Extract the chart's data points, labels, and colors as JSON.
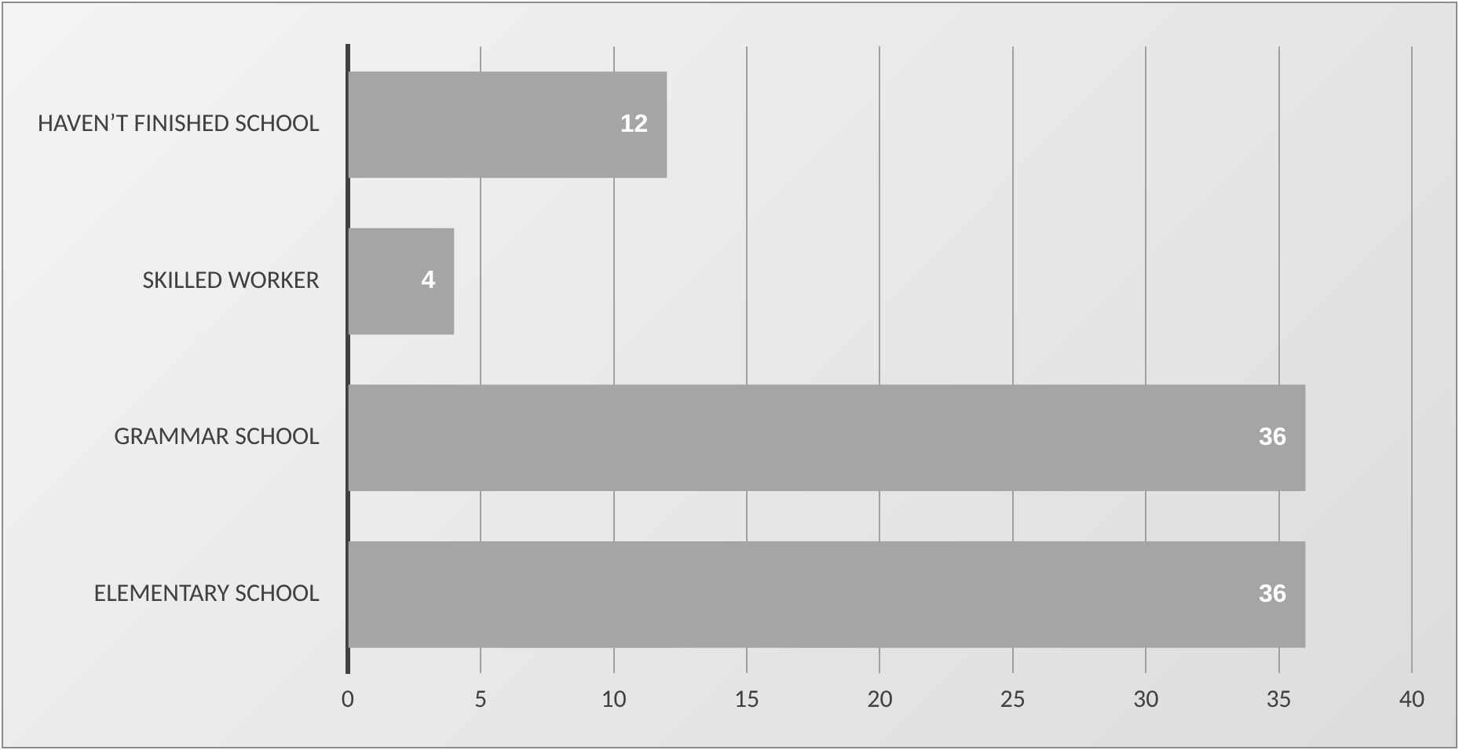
{
  "chart_data": {
    "type": "bar",
    "orientation": "horizontal",
    "categories": [
      "HAVEN’T FINISHED SCHOOL",
      "SKILLED WORKER",
      "GRAMMAR SCHOOL",
      "ELEMENTARY SCHOOL"
    ],
    "values": [
      12,
      4,
      36,
      36
    ],
    "color": "#a5a5a5",
    "xlim": [
      0,
      40
    ],
    "xticks": [
      0,
      5,
      10,
      15,
      20,
      25,
      30,
      35,
      40
    ],
    "grid": "x",
    "data_labels": true,
    "legend": false
  }
}
